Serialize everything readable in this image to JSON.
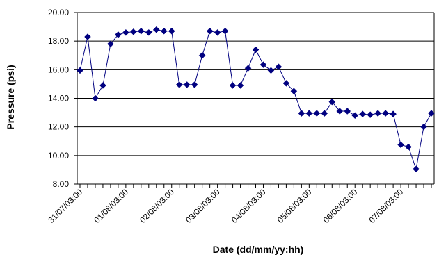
{
  "chart_data": {
    "type": "line",
    "title": "",
    "xlabel": "Date (dd/mm/yy:hh)",
    "ylabel": "Pressure (psi)",
    "ylim": [
      8,
      20
    ],
    "y_ticks": [
      "8.00",
      "10.00",
      "12.00",
      "14.00",
      "16.00",
      "18.00",
      "20.00"
    ],
    "x_tick_labels": [
      "31/07/03:00",
      "01/08/03:00",
      "02/08/03:00",
      "03/08/03:00",
      "04/08/03:00",
      "05/08/03:00",
      "06/08/03:00",
      "07/08/03:00"
    ],
    "grid": "horizontal",
    "legend": "none",
    "colors": {
      "series": "#000080",
      "grid": "#000000",
      "axis": "#000000"
    },
    "series": [
      {
        "marker": "diamond",
        "values": [
          15.95,
          18.3,
          14.0,
          14.9,
          17.8,
          18.45,
          18.6,
          18.65,
          18.7,
          18.6,
          18.8,
          18.7,
          18.7,
          14.95,
          14.95,
          14.95,
          17.0,
          18.7,
          18.6,
          18.7,
          14.9,
          14.9,
          16.1,
          17.4,
          16.35,
          15.95,
          16.2,
          15.05,
          14.5,
          12.95,
          12.95,
          12.95,
          12.95,
          13.75,
          13.1,
          13.1,
          12.8,
          12.9,
          12.85,
          12.95,
          12.95,
          12.9,
          10.75,
          10.6,
          9.05,
          12.0,
          12.95
        ]
      }
    ]
  }
}
